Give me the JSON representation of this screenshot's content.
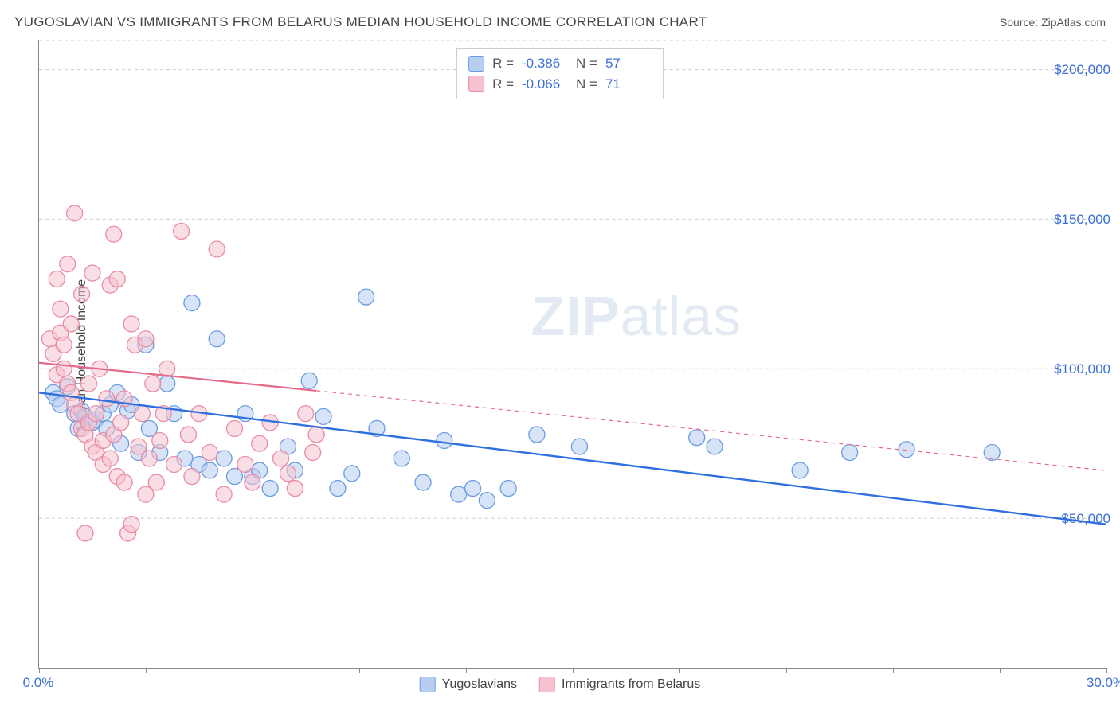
{
  "title": "YUGOSLAVIAN VS IMMIGRANTS FROM BELARUS MEDIAN HOUSEHOLD INCOME CORRELATION CHART",
  "source": "Source: ZipAtlas.com",
  "y_axis_label": "Median Household Income",
  "watermark_bold": "ZIP",
  "watermark_rest": "atlas",
  "chart": {
    "type": "scatter",
    "xlim": [
      0,
      30
    ],
    "ylim": [
      0,
      210000
    ],
    "x_ticks": [
      0,
      3,
      6,
      9,
      12,
      15,
      18,
      21,
      24,
      27,
      30
    ],
    "x_tick_labels": {
      "0": "0.0%",
      "30": "30.0%"
    },
    "y_gridlines": [
      50000,
      100000,
      150000,
      200000,
      210000
    ],
    "y_tick_labels": {
      "50000": "$50,000",
      "100000": "$100,000",
      "150000": "$150,000",
      "200000": "$200,000"
    },
    "grid_color": "#cccccc",
    "background_color": "#ffffff",
    "axis_color": "#888888",
    "y_label_color": "#3b6fd8",
    "series": [
      {
        "name": "Yugoslavians",
        "marker_fill": "#b7cef1",
        "marker_stroke": "#6a9be0",
        "marker_radius": 10,
        "fill_opacity": 0.55,
        "line_color": "#2f6fe0",
        "line_width": 2.4,
        "trend": {
          "x1": 0,
          "y1": 92000,
          "x2": 30,
          "y2": 48000
        },
        "r_value": "-0.386",
        "n_value": "57",
        "points": [
          [
            0.4,
            92000
          ],
          [
            0.5,
            90000
          ],
          [
            0.6,
            88000
          ],
          [
            0.8,
            94000
          ],
          [
            1.0,
            85000
          ],
          [
            1.1,
            80000
          ],
          [
            1.2,
            86000
          ],
          [
            1.3,
            84000
          ],
          [
            1.5,
            82000
          ],
          [
            1.6,
            83000
          ],
          [
            1.8,
            85000
          ],
          [
            1.9,
            80000
          ],
          [
            2.0,
            88000
          ],
          [
            2.2,
            92000
          ],
          [
            2.3,
            75000
          ],
          [
            2.5,
            86000
          ],
          [
            2.6,
            88000
          ],
          [
            2.8,
            72000
          ],
          [
            3.0,
            108000
          ],
          [
            3.1,
            80000
          ],
          [
            3.4,
            72000
          ],
          [
            3.6,
            95000
          ],
          [
            3.8,
            85000
          ],
          [
            4.1,
            70000
          ],
          [
            4.3,
            122000
          ],
          [
            4.5,
            68000
          ],
          [
            4.8,
            66000
          ],
          [
            5.0,
            110000
          ],
          [
            5.2,
            70000
          ],
          [
            5.5,
            64000
          ],
          [
            5.8,
            85000
          ],
          [
            6.0,
            64000
          ],
          [
            6.2,
            66000
          ],
          [
            6.5,
            60000
          ],
          [
            7.0,
            74000
          ],
          [
            7.2,
            66000
          ],
          [
            7.6,
            96000
          ],
          [
            8.0,
            84000
          ],
          [
            8.4,
            60000
          ],
          [
            8.8,
            65000
          ],
          [
            9.2,
            124000
          ],
          [
            9.5,
            80000
          ],
          [
            10.2,
            70000
          ],
          [
            10.8,
            62000
          ],
          [
            11.4,
            76000
          ],
          [
            11.8,
            58000
          ],
          [
            12.2,
            60000
          ],
          [
            12.6,
            56000
          ],
          [
            13.2,
            60000
          ],
          [
            14.0,
            78000
          ],
          [
            15.2,
            74000
          ],
          [
            18.5,
            77000
          ],
          [
            19.0,
            74000
          ],
          [
            21.4,
            66000
          ],
          [
            22.8,
            72000
          ],
          [
            24.4,
            73000
          ],
          [
            26.8,
            72000
          ]
        ]
      },
      {
        "name": "Immigrants from Belarus",
        "marker_fill": "#f6c2cf",
        "marker_stroke": "#e98ba3",
        "marker_radius": 10,
        "fill_opacity": 0.55,
        "line_color": "#e56a8a",
        "line_width": 2.2,
        "dash_after_x": 7.8,
        "trend": {
          "x1": 0,
          "y1": 102000,
          "x2": 30,
          "y2": 66000
        },
        "r_value": "-0.066",
        "n_value": "71",
        "points": [
          [
            0.3,
            110000
          ],
          [
            0.4,
            105000
          ],
          [
            0.5,
            130000
          ],
          [
            0.5,
            98000
          ],
          [
            0.6,
            120000
          ],
          [
            0.6,
            112000
          ],
          [
            0.7,
            100000
          ],
          [
            0.7,
            108000
          ],
          [
            0.8,
            135000
          ],
          [
            0.8,
            95000
          ],
          [
            0.9,
            115000
          ],
          [
            0.9,
            92000
          ],
          [
            1.0,
            88000
          ],
          [
            1.0,
            152000
          ],
          [
            1.1,
            85000
          ],
          [
            1.2,
            80000
          ],
          [
            1.2,
            125000
          ],
          [
            1.3,
            78000
          ],
          [
            1.3,
            45000
          ],
          [
            1.4,
            82000
          ],
          [
            1.4,
            95000
          ],
          [
            1.5,
            132000
          ],
          [
            1.5,
            74000
          ],
          [
            1.6,
            85000
          ],
          [
            1.6,
            72000
          ],
          [
            1.7,
            100000
          ],
          [
            1.8,
            76000
          ],
          [
            1.8,
            68000
          ],
          [
            1.9,
            90000
          ],
          [
            2.0,
            128000
          ],
          [
            2.0,
            70000
          ],
          [
            2.1,
            78000
          ],
          [
            2.1,
            145000
          ],
          [
            2.2,
            130000
          ],
          [
            2.2,
            64000
          ],
          [
            2.3,
            82000
          ],
          [
            2.4,
            90000
          ],
          [
            2.4,
            62000
          ],
          [
            2.5,
            45000
          ],
          [
            2.6,
            48000
          ],
          [
            2.6,
            115000
          ],
          [
            2.7,
            108000
          ],
          [
            2.8,
            74000
          ],
          [
            2.9,
            85000
          ],
          [
            3.0,
            110000
          ],
          [
            3.0,
            58000
          ],
          [
            3.1,
            70000
          ],
          [
            3.2,
            95000
          ],
          [
            3.3,
            62000
          ],
          [
            3.4,
            76000
          ],
          [
            3.5,
            85000
          ],
          [
            3.6,
            100000
          ],
          [
            3.8,
            68000
          ],
          [
            4.0,
            146000
          ],
          [
            4.2,
            78000
          ],
          [
            4.3,
            64000
          ],
          [
            4.5,
            85000
          ],
          [
            4.8,
            72000
          ],
          [
            5.0,
            140000
          ],
          [
            5.2,
            58000
          ],
          [
            5.5,
            80000
          ],
          [
            5.8,
            68000
          ],
          [
            6.0,
            62000
          ],
          [
            6.2,
            75000
          ],
          [
            6.5,
            82000
          ],
          [
            6.8,
            70000
          ],
          [
            7.0,
            65000
          ],
          [
            7.2,
            60000
          ],
          [
            7.5,
            85000
          ],
          [
            7.7,
            72000
          ],
          [
            7.8,
            78000
          ]
        ]
      }
    ]
  },
  "stat_legend": {
    "r_label": "R  =",
    "n_label": "N  ="
  },
  "bottom_legend": {
    "label1": "Yugoslavians",
    "label2": "Immigrants from Belarus"
  }
}
